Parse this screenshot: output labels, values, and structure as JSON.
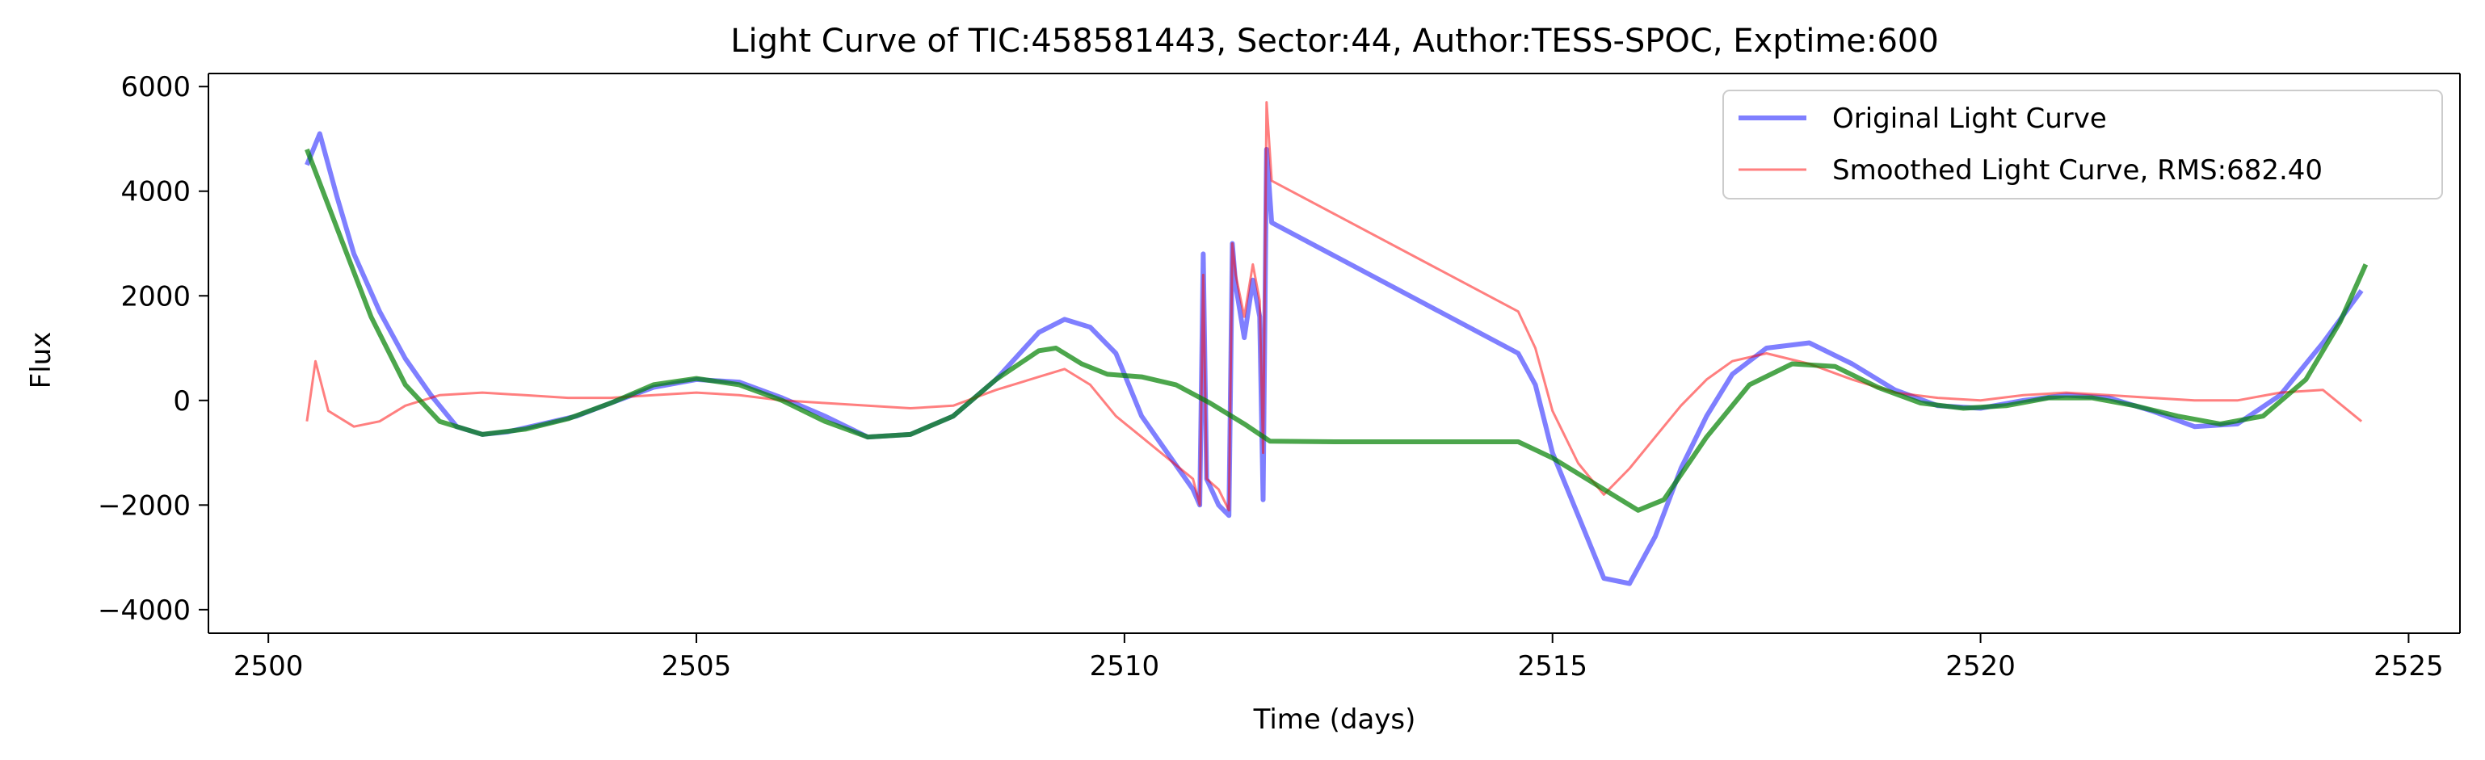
{
  "chart_data": {
    "type": "line",
    "title": "Light Curve of TIC:458581443, Sector:44, Author:TESS-SPOC, Exptime:600",
    "xlabel": "Time (days)",
    "ylabel": "Flux",
    "xlim": [
      2499.3,
      2525.6
    ],
    "ylim": [
      -4450,
      6250
    ],
    "x_ticks": [
      2500,
      2505,
      2510,
      2515,
      2520,
      2525
    ],
    "y_ticks": [
      -4000,
      -2000,
      0,
      2000,
      4000,
      6000
    ],
    "grid": false,
    "legend_position": "upper right",
    "series": [
      {
        "name": "Original Light Curve",
        "color": "#0000ff",
        "alpha": 0.5,
        "points": [
          [
            2500.45,
            4500
          ],
          [
            2500.6,
            5100
          ],
          [
            2500.8,
            3900
          ],
          [
            2501.0,
            2800
          ],
          [
            2501.3,
            1700
          ],
          [
            2501.6,
            800
          ],
          [
            2501.9,
            100
          ],
          [
            2502.2,
            -500
          ],
          [
            2502.5,
            -650
          ],
          [
            2502.8,
            -600
          ],
          [
            2503.2,
            -450
          ],
          [
            2503.6,
            -300
          ],
          [
            2504.0,
            -50
          ],
          [
            2504.5,
            250
          ],
          [
            2505.0,
            400
          ],
          [
            2505.5,
            350
          ],
          [
            2506.0,
            50
          ],
          [
            2506.5,
            -300
          ],
          [
            2507.0,
            -700
          ],
          [
            2507.5,
            -650
          ],
          [
            2508.0,
            -300
          ],
          [
            2508.5,
            400
          ],
          [
            2509.0,
            1300
          ],
          [
            2509.3,
            1550
          ],
          [
            2509.6,
            1400
          ],
          [
            2509.9,
            900
          ],
          [
            2510.2,
            -300
          ],
          [
            2510.5,
            -1000
          ],
          [
            2510.8,
            -1700
          ],
          [
            2510.88,
            -2000
          ],
          [
            2510.92,
            2800
          ],
          [
            2510.96,
            -1500
          ],
          [
            2511.1,
            -2000
          ],
          [
            2511.22,
            -2200
          ],
          [
            2511.26,
            3000
          ],
          [
            2511.3,
            2200
          ],
          [
            2511.4,
            1200
          ],
          [
            2511.5,
            2300
          ],
          [
            2511.58,
            1600
          ],
          [
            2511.62,
            -1900
          ],
          [
            2511.66,
            4800
          ],
          [
            2511.72,
            3400
          ],
          [
            2514.6,
            900
          ],
          [
            2514.8,
            300
          ],
          [
            2515.0,
            -1000
          ],
          [
            2515.3,
            -2200
          ],
          [
            2515.6,
            -3400
          ],
          [
            2515.9,
            -3500
          ],
          [
            2516.2,
            -2600
          ],
          [
            2516.5,
            -1300
          ],
          [
            2516.8,
            -300
          ],
          [
            2517.1,
            500
          ],
          [
            2517.5,
            1000
          ],
          [
            2518.0,
            1100
          ],
          [
            2518.5,
            700
          ],
          [
            2519.0,
            200
          ],
          [
            2519.5,
            -100
          ],
          [
            2520.0,
            -150
          ],
          [
            2520.5,
            0
          ],
          [
            2521.0,
            100
          ],
          [
            2521.5,
            50
          ],
          [
            2522.0,
            -200
          ],
          [
            2522.5,
            -500
          ],
          [
            2523.0,
            -450
          ],
          [
            2523.5,
            100
          ],
          [
            2524.0,
            1100
          ],
          [
            2524.45,
            2100
          ]
        ]
      },
      {
        "name": "Smoothed Light Curve, RMS:682.40",
        "color": "#ff0000",
        "alpha": 0.5,
        "points": [
          [
            2500.45,
            -400
          ],
          [
            2500.55,
            750
          ],
          [
            2500.7,
            -200
          ],
          [
            2501.0,
            -500
          ],
          [
            2501.3,
            -400
          ],
          [
            2501.6,
            -100
          ],
          [
            2502.0,
            100
          ],
          [
            2502.5,
            150
          ],
          [
            2503.0,
            100
          ],
          [
            2503.5,
            50
          ],
          [
            2504.0,
            50
          ],
          [
            2504.5,
            100
          ],
          [
            2505.0,
            150
          ],
          [
            2505.5,
            100
          ],
          [
            2506.0,
            0
          ],
          [
            2506.5,
            -50
          ],
          [
            2507.0,
            -100
          ],
          [
            2507.5,
            -150
          ],
          [
            2508.0,
            -100
          ],
          [
            2508.5,
            200
          ],
          [
            2509.0,
            450
          ],
          [
            2509.3,
            600
          ],
          [
            2509.6,
            300
          ],
          [
            2509.9,
            -300
          ],
          [
            2510.2,
            -700
          ],
          [
            2510.5,
            -1100
          ],
          [
            2510.8,
            -1500
          ],
          [
            2510.88,
            -2000
          ],
          [
            2510.92,
            2400
          ],
          [
            2510.96,
            -1500
          ],
          [
            2511.1,
            -1700
          ],
          [
            2511.22,
            -2100
          ],
          [
            2511.26,
            3000
          ],
          [
            2511.3,
            2400
          ],
          [
            2511.4,
            1600
          ],
          [
            2511.5,
            2600
          ],
          [
            2511.58,
            1900
          ],
          [
            2511.62,
            -1000
          ],
          [
            2511.66,
            5700
          ],
          [
            2511.72,
            4200
          ],
          [
            2514.6,
            1700
          ],
          [
            2514.8,
            1000
          ],
          [
            2515.0,
            -200
          ],
          [
            2515.3,
            -1200
          ],
          [
            2515.6,
            -1800
          ],
          [
            2515.9,
            -1300
          ],
          [
            2516.2,
            -700
          ],
          [
            2516.5,
            -100
          ],
          [
            2516.8,
            400
          ],
          [
            2517.1,
            750
          ],
          [
            2517.5,
            900
          ],
          [
            2518.0,
            700
          ],
          [
            2518.5,
            400
          ],
          [
            2519.0,
            150
          ],
          [
            2519.5,
            50
          ],
          [
            2520.0,
            0
          ],
          [
            2520.5,
            100
          ],
          [
            2521.0,
            150
          ],
          [
            2521.5,
            100
          ],
          [
            2522.0,
            50
          ],
          [
            2522.5,
            0
          ],
          [
            2523.0,
            0
          ],
          [
            2523.5,
            150
          ],
          [
            2524.0,
            200
          ],
          [
            2524.45,
            -400
          ]
        ]
      },
      {
        "color": "#008000",
        "alpha": 0.7,
        "points": [
          [
            2500.45,
            4800
          ],
          [
            2500.8,
            3300
          ],
          [
            2501.2,
            1600
          ],
          [
            2501.6,
            300
          ],
          [
            2502.0,
            -400
          ],
          [
            2502.5,
            -650
          ],
          [
            2503.0,
            -550
          ],
          [
            2503.5,
            -350
          ],
          [
            2504.0,
            -50
          ],
          [
            2504.5,
            300
          ],
          [
            2505.0,
            420
          ],
          [
            2505.5,
            300
          ],
          [
            2506.0,
            0
          ],
          [
            2506.5,
            -400
          ],
          [
            2507.0,
            -700
          ],
          [
            2507.5,
            -650
          ],
          [
            2508.0,
            -300
          ],
          [
            2508.5,
            400
          ],
          [
            2509.0,
            950
          ],
          [
            2509.2,
            1000
          ],
          [
            2509.5,
            700
          ],
          [
            2509.8,
            500
          ],
          [
            2510.2,
            450
          ],
          [
            2510.6,
            300
          ],
          [
            2511.0,
            -50
          ],
          [
            2511.4,
            -450
          ],
          [
            2511.7,
            -780
          ],
          [
            2512.5,
            -790
          ],
          [
            2513.5,
            -790
          ],
          [
            2514.6,
            -790
          ],
          [
            2515.0,
            -1100
          ],
          [
            2515.5,
            -1600
          ],
          [
            2516.0,
            -2100
          ],
          [
            2516.3,
            -1900
          ],
          [
            2516.8,
            -700
          ],
          [
            2517.3,
            300
          ],
          [
            2517.8,
            700
          ],
          [
            2518.3,
            650
          ],
          [
            2518.8,
            250
          ],
          [
            2519.3,
            -50
          ],
          [
            2519.8,
            -150
          ],
          [
            2520.3,
            -100
          ],
          [
            2520.8,
            50
          ],
          [
            2521.3,
            50
          ],
          [
            2521.8,
            -100
          ],
          [
            2522.3,
            -300
          ],
          [
            2522.8,
            -450
          ],
          [
            2523.3,
            -300
          ],
          [
            2523.8,
            400
          ],
          [
            2524.2,
            1500
          ],
          [
            2524.5,
            2600
          ]
        ]
      }
    ]
  },
  "legend": {
    "entries": [
      {
        "label": "Original Light Curve",
        "color": "#0000ff",
        "alpha": 0.5
      },
      {
        "label": "Smoothed Light Curve, RMS:682.40",
        "color": "#ff0000",
        "alpha": 0.5
      }
    ]
  }
}
